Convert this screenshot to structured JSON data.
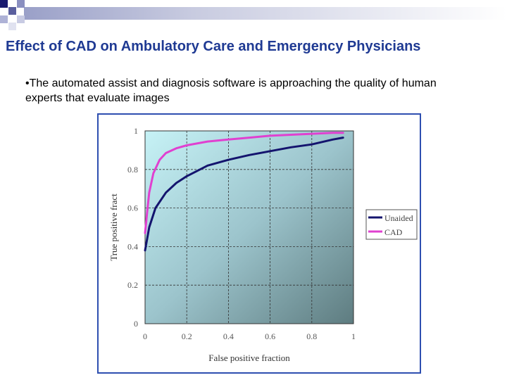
{
  "slide": {
    "title": "Effect of CAD on Ambulatory Care and Emergency Physicians",
    "bullet": "•The automated assist and diagnosis software is approaching the quality of human experts that evaluate images"
  },
  "colors": {
    "title": "#1f3a93",
    "unaided": "#14146e",
    "cad": "#e040d0",
    "frame": "#2e4fb0"
  },
  "chart_data": {
    "type": "line",
    "xlabel": "False positive fraction",
    "ylabel": "True positive fract",
    "xlim": [
      0,
      1
    ],
    "ylim": [
      0,
      1
    ],
    "xticks": [
      "0",
      "0.2",
      "0.4",
      "0.6",
      "0.8",
      "1"
    ],
    "yticks": [
      "0",
      "0.2",
      "0.4",
      "0.6",
      "0.8",
      "1"
    ],
    "grid": true,
    "legend_position": "right",
    "series": [
      {
        "name": "Unaided",
        "color": "#14146e",
        "x": [
          0.0,
          0.02,
          0.05,
          0.1,
          0.15,
          0.2,
          0.3,
          0.4,
          0.5,
          0.6,
          0.7,
          0.8,
          0.9,
          0.95
        ],
        "y": [
          0.38,
          0.5,
          0.6,
          0.68,
          0.73,
          0.765,
          0.82,
          0.85,
          0.875,
          0.895,
          0.915,
          0.93,
          0.955,
          0.965
        ]
      },
      {
        "name": "CAD",
        "color": "#e040d0",
        "x": [
          0.0,
          0.01,
          0.02,
          0.04,
          0.07,
          0.1,
          0.15,
          0.2,
          0.3,
          0.4,
          0.5,
          0.6,
          0.7,
          0.8,
          0.9,
          0.95
        ],
        "y": [
          0.47,
          0.58,
          0.68,
          0.78,
          0.85,
          0.885,
          0.91,
          0.925,
          0.945,
          0.955,
          0.965,
          0.975,
          0.98,
          0.985,
          0.99,
          0.99
        ]
      }
    ]
  }
}
